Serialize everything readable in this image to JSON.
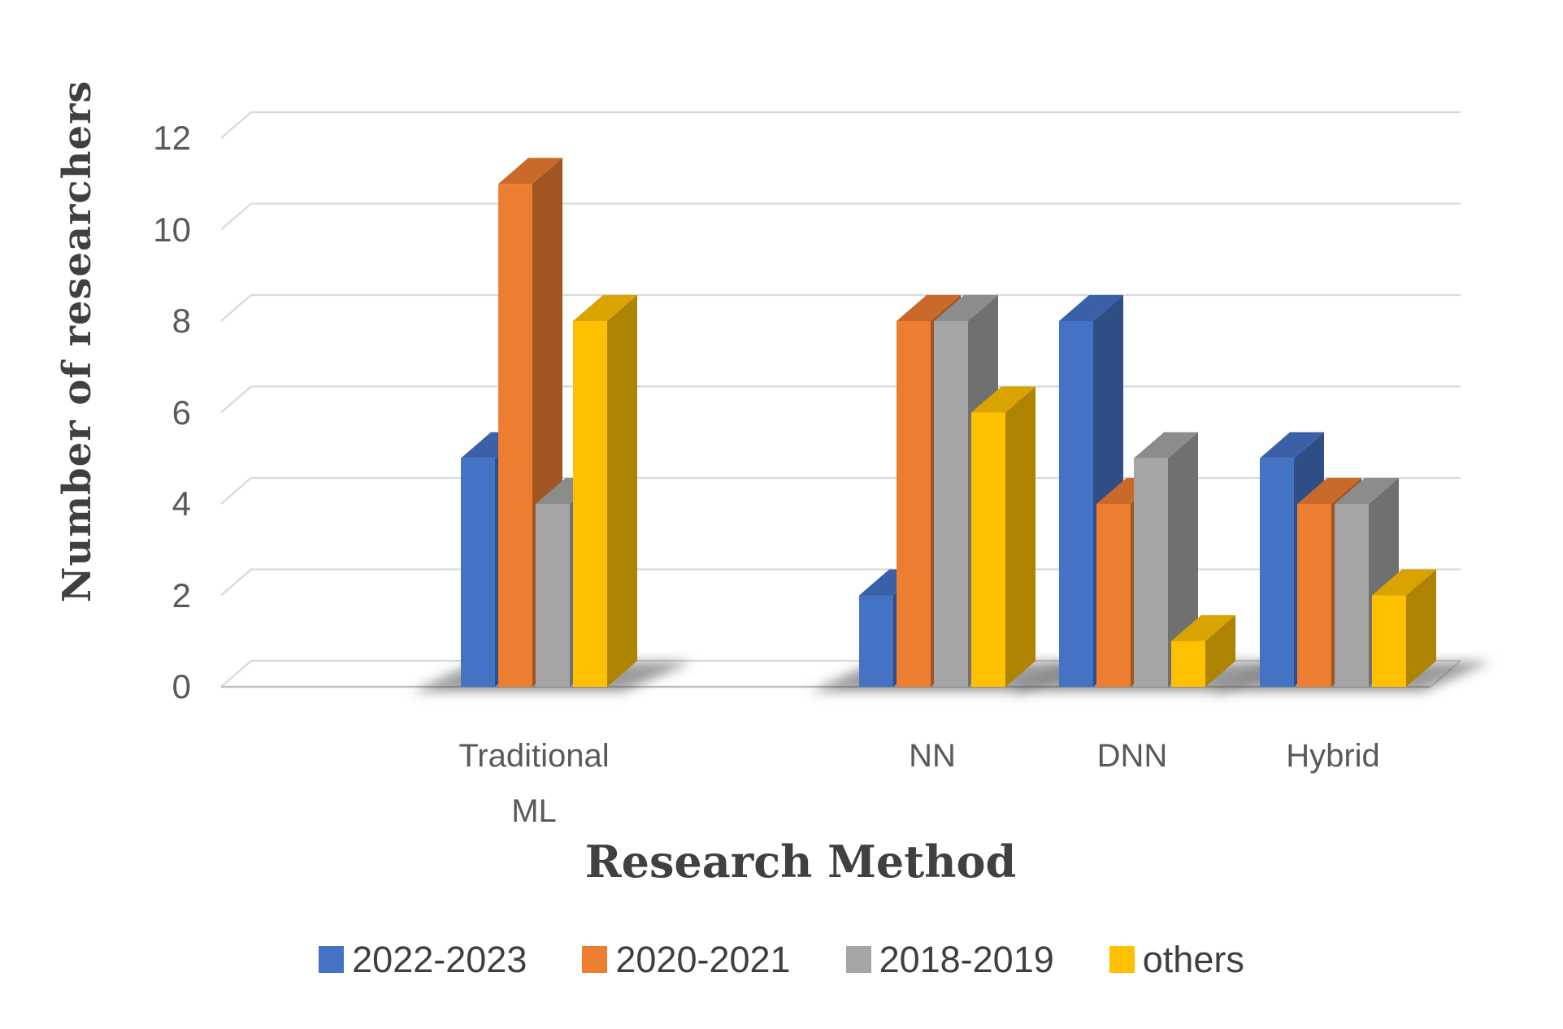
{
  "chart_data": {
    "type": "bar",
    "variant": "3d-clustered-column",
    "title": "",
    "xlabel": "Research Method",
    "ylabel": "Number of researchers",
    "categories": [
      "Traditional ML",
      "NN",
      "DNN",
      "Hybrid"
    ],
    "series": [
      {
        "name": "2022-2023",
        "color": "#4472C4",
        "values": [
          5,
          2,
          8,
          5
        ]
      },
      {
        "name": "2020-2021",
        "color": "#ED7D31",
        "values": [
          11,
          8,
          4,
          4
        ]
      },
      {
        "name": "2018-2019",
        "color": "#A5A5A5",
        "values": [
          4,
          8,
          5,
          4
        ]
      },
      {
        "name": "others",
        "color": "#FFC000",
        "values": [
          8,
          6,
          1,
          2
        ]
      }
    ],
    "ylim": [
      0,
      12
    ],
    "yticks": [
      0,
      2,
      4,
      6,
      8,
      10,
      12
    ],
    "grid": true,
    "legend_position": "bottom"
  },
  "colors": {
    "background": "#FFFFFF",
    "gridline": "#D9D9D9",
    "axis_line": "#BFBFBF",
    "tick_text": "#595959",
    "axis_title_text": "#404040",
    "legend_text": "#3F3F3F",
    "shadow": "#3A3A3A"
  }
}
